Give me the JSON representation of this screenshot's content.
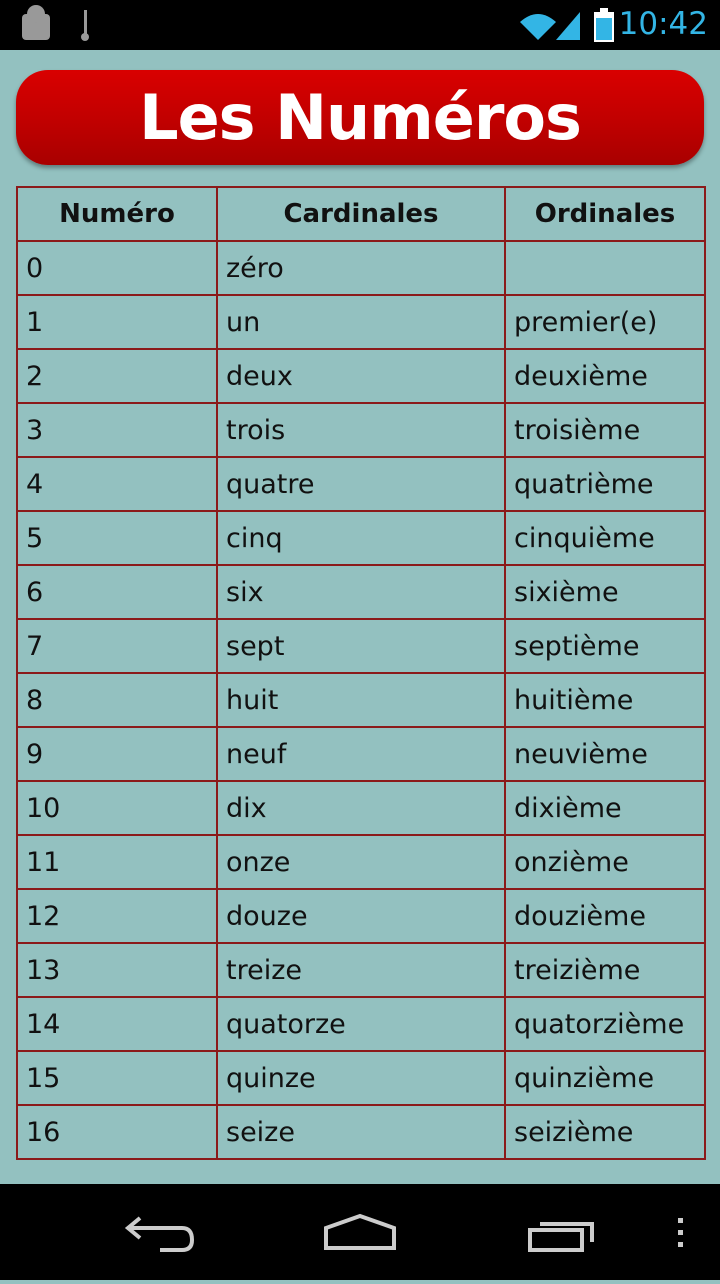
{
  "status_bar": {
    "time": "10:42"
  },
  "header": {
    "title": "Les Numéros"
  },
  "table": {
    "columns": [
      "Numéro",
      "Cardinales",
      "Ordinales"
    ],
    "rows": [
      [
        "0",
        "zéro",
        null
      ],
      [
        "1",
        "un",
        "premier(e)"
      ],
      [
        "2",
        "deux",
        "deuxième"
      ],
      [
        "3",
        "trois",
        "troisième"
      ],
      [
        "4",
        "quatre",
        "quatrième"
      ],
      [
        "5",
        "cinq",
        "cinquième"
      ],
      [
        "6",
        "six",
        "sixième"
      ],
      [
        "7",
        "sept",
        "septième"
      ],
      [
        "8",
        "huit",
        "huitième"
      ],
      [
        "9",
        "neuf",
        "neuvième"
      ],
      [
        "10",
        "dix",
        "dixième"
      ],
      [
        "11",
        "onze",
        "onzième"
      ],
      [
        "12",
        "douze",
        "douzième"
      ],
      [
        "13",
        "treize",
        "treizième"
      ],
      [
        "14",
        "quatorze",
        "quatorzième"
      ],
      [
        "15",
        "quinze",
        "quinzième"
      ],
      [
        "16",
        "seize",
        "seizième"
      ]
    ]
  }
}
